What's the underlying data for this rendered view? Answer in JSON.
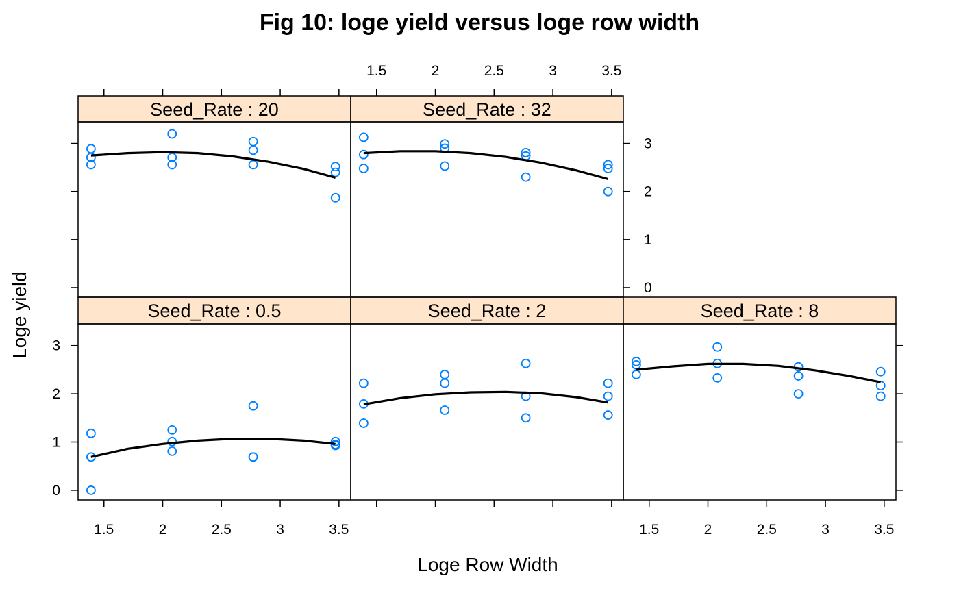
{
  "chart_data": {
    "type": "scatter",
    "title": "Fig 10: loge yield versus loge row width",
    "xlabel": "Loge Row Width",
    "ylabel": "Loge yield",
    "xlim": [
      1.28,
      3.6
    ],
    "ylim": [
      -0.2,
      3.45
    ],
    "x_ticks": [
      1.5,
      2,
      2.5,
      3,
      3.5
    ],
    "y_ticks": [
      0,
      1,
      2,
      3
    ],
    "point_color": "#0080ff",
    "strip_color": "#ffe5cc",
    "line_color": "#000000",
    "panels": [
      {
        "label": "Seed_Rate : 0.5",
        "points": [
          [
            1.39,
            1.18
          ],
          [
            1.39,
            0.69
          ],
          [
            1.39,
            0.0
          ],
          [
            2.08,
            1.25
          ],
          [
            2.08,
            1.01
          ],
          [
            2.08,
            0.81
          ],
          [
            2.77,
            1.75
          ],
          [
            2.77,
            0.69
          ],
          [
            2.77,
            0.69
          ],
          [
            3.47,
            1.01
          ],
          [
            3.47,
            0.95
          ],
          [
            3.47,
            0.93
          ]
        ],
        "fit": [
          [
            1.39,
            0.69
          ],
          [
            1.7,
            0.86
          ],
          [
            2.0,
            0.96
          ],
          [
            2.3,
            1.03
          ],
          [
            2.6,
            1.07
          ],
          [
            2.9,
            1.07
          ],
          [
            3.2,
            1.03
          ],
          [
            3.47,
            0.96
          ]
        ]
      },
      {
        "label": "Seed_Rate : 2",
        "points": [
          [
            1.39,
            2.22
          ],
          [
            1.39,
            1.79
          ],
          [
            1.39,
            1.39
          ],
          [
            2.08,
            2.4
          ],
          [
            2.08,
            2.22
          ],
          [
            2.08,
            1.66
          ],
          [
            2.77,
            2.63
          ],
          [
            2.77,
            1.95
          ],
          [
            2.77,
            1.5
          ],
          [
            3.47,
            2.22
          ],
          [
            3.47,
            1.95
          ],
          [
            3.47,
            1.56
          ]
        ],
        "fit": [
          [
            1.39,
            1.78
          ],
          [
            1.7,
            1.91
          ],
          [
            2.0,
            1.99
          ],
          [
            2.3,
            2.03
          ],
          [
            2.6,
            2.04
          ],
          [
            2.9,
            2.01
          ],
          [
            3.2,
            1.93
          ],
          [
            3.47,
            1.82
          ]
        ]
      },
      {
        "label": "Seed_Rate : 8",
        "points": [
          [
            1.39,
            2.67
          ],
          [
            1.39,
            2.6
          ],
          [
            1.39,
            2.4
          ],
          [
            2.08,
            2.97
          ],
          [
            2.08,
            2.63
          ],
          [
            2.08,
            2.33
          ],
          [
            2.77,
            2.56
          ],
          [
            2.77,
            2.37
          ],
          [
            2.77,
            2.0
          ],
          [
            3.47,
            2.46
          ],
          [
            3.47,
            2.17
          ],
          [
            3.47,
            1.95
          ]
        ],
        "fit": [
          [
            1.39,
            2.5
          ],
          [
            1.7,
            2.57
          ],
          [
            2.0,
            2.62
          ],
          [
            2.3,
            2.62
          ],
          [
            2.6,
            2.58
          ],
          [
            2.9,
            2.49
          ],
          [
            3.2,
            2.37
          ],
          [
            3.47,
            2.24
          ]
        ]
      },
      {
        "label": "Seed_Rate : 20",
        "points": [
          [
            1.39,
            2.89
          ],
          [
            1.39,
            2.71
          ],
          [
            1.39,
            2.56
          ],
          [
            2.08,
            3.2
          ],
          [
            2.08,
            2.71
          ],
          [
            2.08,
            2.56
          ],
          [
            2.77,
            3.04
          ],
          [
            2.77,
            2.86
          ],
          [
            2.77,
            2.56
          ],
          [
            3.47,
            2.52
          ],
          [
            3.47,
            2.4
          ],
          [
            3.47,
            1.87
          ]
        ],
        "fit": [
          [
            1.39,
            2.75
          ],
          [
            1.7,
            2.8
          ],
          [
            2.0,
            2.82
          ],
          [
            2.3,
            2.8
          ],
          [
            2.6,
            2.73
          ],
          [
            2.9,
            2.62
          ],
          [
            3.2,
            2.47
          ],
          [
            3.47,
            2.29
          ]
        ]
      },
      {
        "label": "Seed_Rate : 32",
        "points": [
          [
            1.39,
            3.13
          ],
          [
            1.39,
            2.77
          ],
          [
            1.39,
            2.48
          ],
          [
            2.08,
            2.99
          ],
          [
            2.08,
            2.9
          ],
          [
            2.08,
            2.53
          ],
          [
            2.77,
            2.81
          ],
          [
            2.77,
            2.74
          ],
          [
            2.77,
            2.3
          ],
          [
            3.47,
            2.56
          ],
          [
            3.47,
            2.48
          ],
          [
            3.47,
            2.0
          ]
        ],
        "fit": [
          [
            1.39,
            2.8
          ],
          [
            1.7,
            2.84
          ],
          [
            2.0,
            2.84
          ],
          [
            2.3,
            2.8
          ],
          [
            2.6,
            2.72
          ],
          [
            2.9,
            2.6
          ],
          [
            3.2,
            2.44
          ],
          [
            3.47,
            2.26
          ]
        ]
      }
    ]
  }
}
